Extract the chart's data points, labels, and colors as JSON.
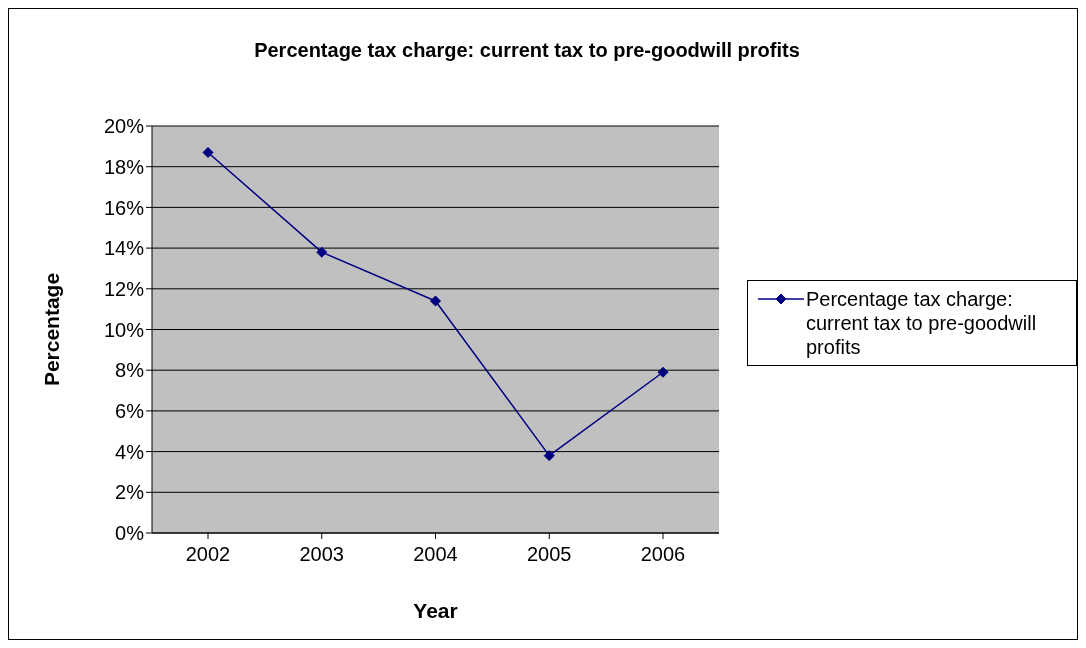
{
  "chart_data": {
    "type": "line",
    "title": "Percentage tax charge: current tax to pre-goodwill profits",
    "xlabel": "Year",
    "ylabel": "Percentage",
    "categories": [
      "2002",
      "2003",
      "2004",
      "2005",
      "2006"
    ],
    "series": [
      {
        "name": "Percentage tax charge: current tax to pre-goodwill profits",
        "color": "#000080",
        "values": [
          18.7,
          13.8,
          11.4,
          3.8,
          7.9
        ]
      }
    ],
    "ylim": [
      0,
      20
    ],
    "yticks": [
      {
        "value": 0,
        "label": "0%"
      },
      {
        "value": 2,
        "label": "2%"
      },
      {
        "value": 4,
        "label": "4%"
      },
      {
        "value": 6,
        "label": "6%"
      },
      {
        "value": 8,
        "label": "8%"
      },
      {
        "value": 10,
        "label": "10%"
      },
      {
        "value": 12,
        "label": "12%"
      },
      {
        "value": 14,
        "label": "14%"
      },
      {
        "value": 16,
        "label": "16%"
      },
      {
        "value": 18,
        "label": "18%"
      },
      {
        "value": 20,
        "label": "20%"
      }
    ],
    "grid": "y",
    "legend": "right",
    "marker": "diamond",
    "line_style": "solid"
  }
}
